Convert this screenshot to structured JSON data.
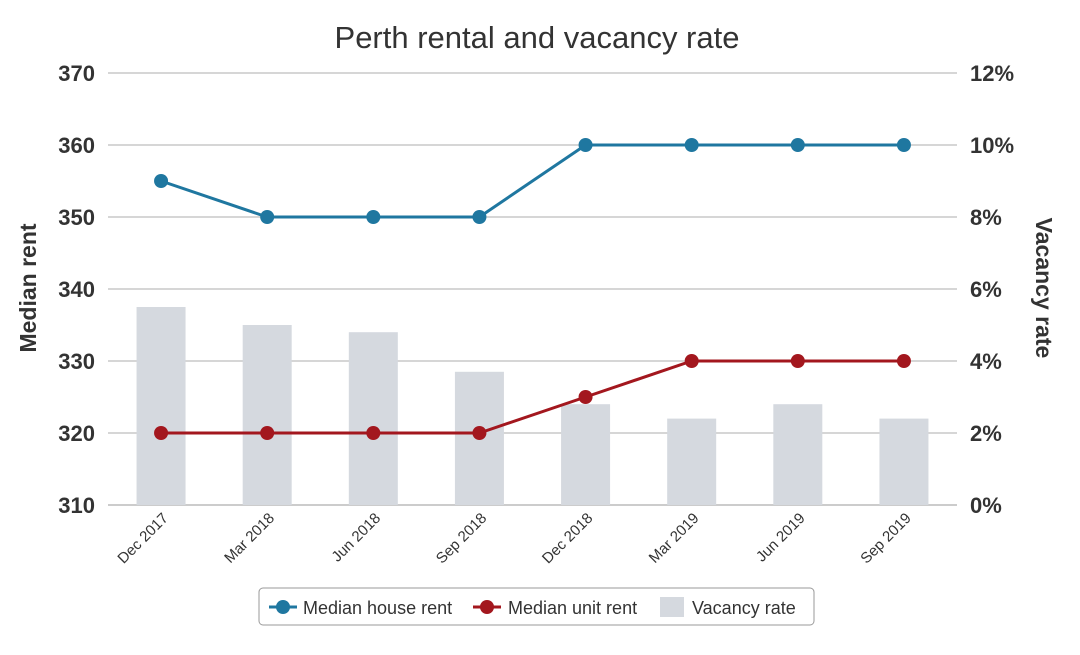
{
  "chart_data": {
    "type": "bar+line",
    "title": "Perth rental and vacancy rate",
    "categories": [
      "Dec 2017",
      "Mar 2018",
      "Jun 2018",
      "Sep 2018",
      "Dec 2018",
      "Mar 2019",
      "Jun 2019",
      "Sep 2019"
    ],
    "series": [
      {
        "name": "Median house rent",
        "type": "line",
        "axis": "left",
        "color": "#1f77a0",
        "values": [
          355,
          350,
          350,
          350,
          360,
          360,
          360,
          360
        ]
      },
      {
        "name": "Median unit rent",
        "type": "line",
        "axis": "left",
        "color": "#a3171e",
        "values": [
          320,
          320,
          320,
          320,
          325,
          330,
          330,
          330
        ]
      },
      {
        "name": "Vacancy rate",
        "type": "bar",
        "axis": "right",
        "color": "#d5d9df",
        "values": [
          5.5,
          5.0,
          4.8,
          3.7,
          2.8,
          2.4,
          2.8,
          2.4
        ]
      }
    ],
    "y_left": {
      "label": "Median rent",
      "min": 310,
      "max": 370,
      "ticks": [
        "310",
        "320",
        "330",
        "340",
        "350",
        "360",
        "370"
      ]
    },
    "y_right": {
      "label": "Vacancy rate",
      "min": 0,
      "max": 12,
      "ticks": [
        "0%",
        "2%",
        "4%",
        "6%",
        "8%",
        "10%",
        "12%"
      ]
    },
    "grid": true,
    "legend": "bottom-center"
  }
}
